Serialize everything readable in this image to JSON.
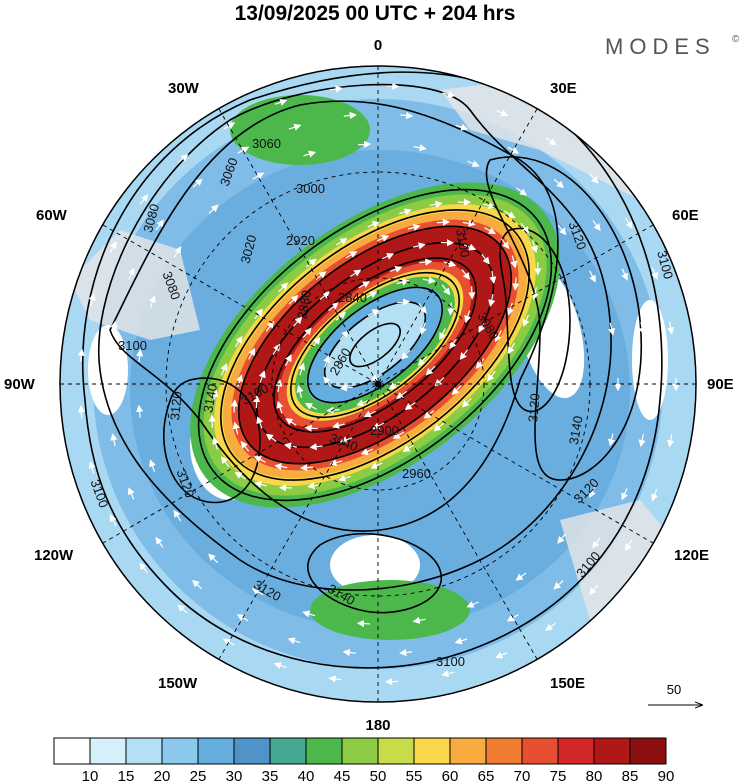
{
  "title": "13/09/2025  00 UTC  + 204 hrs",
  "brand": "MODES",
  "brand_mark": "©",
  "vector_reference": "50",
  "longitude_labels": {
    "lon_0": "0",
    "lon_30e": "30E",
    "lon_60e": "60E",
    "lon_90e": "90E",
    "lon_120e": "120E",
    "lon_150e": "150E",
    "lon_180": "180",
    "lon_150w": "150W",
    "lon_120w": "120W",
    "lon_90w": "90W",
    "lon_60w": "60W",
    "lon_30w": "30W"
  },
  "colorbar": {
    "labels": [
      "10",
      "15",
      "20",
      "25",
      "30",
      "35",
      "40",
      "45",
      "50",
      "55",
      "60",
      "65",
      "70",
      "75",
      "80",
      "85",
      "90"
    ],
    "colors": [
      "#ffffff",
      "#d6f0fb",
      "#b3e0f5",
      "#8cc8ec",
      "#64aedf",
      "#4f93c9",
      "#45a890",
      "#4cb84c",
      "#8ccc45",
      "#c8dc4a",
      "#f8d848",
      "#f8ac40",
      "#f07c32",
      "#e65030",
      "#d42828",
      "#b01818",
      "#8c1010"
    ]
  },
  "contour_labels": {
    "c_3060_a": "3060",
    "c_3060_b": "3060",
    "c_3000": "3000",
    "c_2920": "2920",
    "c_3020": "3020",
    "c_2880": "2880",
    "c_2840": "2840",
    "c_2860": "2860",
    "c_3080_a": "3080",
    "c_3080_b": "3080",
    "c_3080_c": "3080",
    "c_3100_a": "3100",
    "c_3100_b": "3100",
    "c_3100_c": "3100",
    "c_3100_d": "3100",
    "c_3100_e": "3100",
    "c_3100_f": "3100",
    "c_3100_g": "3100",
    "c_3120_a": "3120",
    "c_3120_b": "3120",
    "c_3120_c": "3120",
    "c_3120_d": "3120",
    "c_3120_e": "3120",
    "c_3120_f": "3120",
    "c_3140_a": "3140",
    "c_3140_b": "3140",
    "c_3140_c": "3140",
    "c_3040": "3040",
    "c_2900": "2900",
    "c_2960": "2960"
  }
}
